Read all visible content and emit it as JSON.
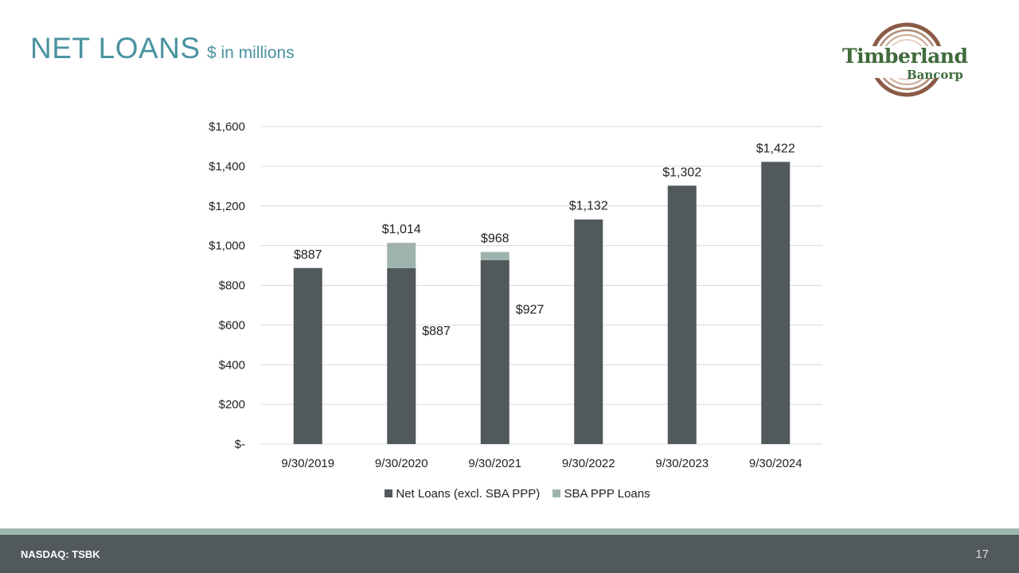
{
  "slide": {
    "title": "NET LOANS",
    "subtitle": "$ in millions",
    "page_number": "17"
  },
  "footer": {
    "ticker": "NASDAQ: TSBK"
  },
  "logo": {
    "line1": "Timberland",
    "line2": "Bancorp"
  },
  "colors": {
    "title": "#4a93a0",
    "net_loans": "#52595c",
    "sba_ppp": "#9fb3ad",
    "footer": "#52595c",
    "footer_stripe": "#9fb8b1"
  },
  "legend": {
    "net_label": "Net Loans (excl. SBA PPP)",
    "ppp_label": "SBA PPP Loans"
  },
  "chart_data": {
    "type": "bar",
    "stacked": true,
    "title": "NET LOANS",
    "ylabel": "$ in millions",
    "ylim": [
      0,
      1600
    ],
    "yticks": [
      0,
      200,
      400,
      600,
      800,
      1000,
      1200,
      1400,
      1600
    ],
    "ytick_labels": [
      "$-",
      "$200",
      "$400",
      "$600",
      "$800",
      "$1,000",
      "$1,200",
      "$1,400",
      "$1,600"
    ],
    "grid": true,
    "legend_position": "bottom",
    "categories": [
      "9/30/2019",
      "9/30/2020",
      "9/30/2021",
      "9/30/2022",
      "9/30/2023",
      "9/30/2024"
    ],
    "series": [
      {
        "name": "Net Loans (excl. SBA PPP)",
        "values": [
          887,
          887,
          927,
          1132,
          1302,
          1422
        ]
      },
      {
        "name": "SBA PPP Loans",
        "values": [
          0,
          127,
          41,
          0,
          0,
          0
        ]
      }
    ],
    "total_labels": [
      "$887",
      "$1,014",
      "$968",
      "$1,132",
      "$1,302",
      "$1,422"
    ],
    "segment_labels": [
      {
        "category": "9/30/2020",
        "value": 887,
        "text": "$887"
      },
      {
        "category": "9/30/2021",
        "value": 927,
        "text": "$927"
      }
    ]
  }
}
